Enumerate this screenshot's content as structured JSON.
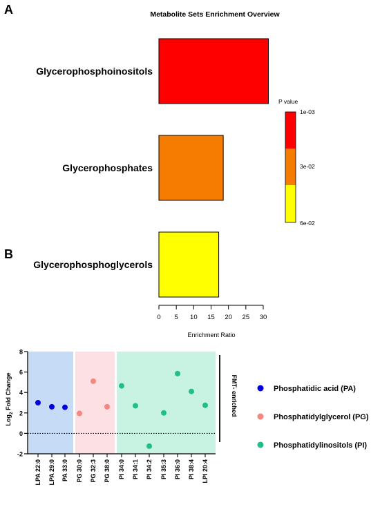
{
  "panel_a_letter": "A",
  "panel_b_letter": "B",
  "chart_data": [
    {
      "type": "bar",
      "orientation": "horizontal",
      "title": "Metabolite Sets Enrichment Overview",
      "xlabel": "Enrichment Ratio",
      "xlim": [
        0,
        32
      ],
      "xticks": [
        "0",
        "5",
        "10",
        "15",
        "20",
        "25",
        "30"
      ],
      "categories": [
        "Glycerophosphoinositols",
        "Glycerophosphates",
        "Glycerophosphoglycerols"
      ],
      "values": [
        31.5,
        18.5,
        17.2
      ],
      "bar_colors": [
        "#ff0000",
        "#f57c00",
        "#ffff00"
      ],
      "colorbar": {
        "title": "P value",
        "labels": [
          "1e-03",
          "3e-02",
          "6e-02"
        ],
        "colors": [
          "#ff0000",
          "#f57c00",
          "#ffff00"
        ]
      }
    },
    {
      "type": "scatter",
      "ylabel_main": "Log",
      "ylabel_sub": "2",
      "ylabel_rest": " Fold Change",
      "ylim": [
        -2,
        8
      ],
      "yticks": [
        "-2",
        "0",
        "2",
        "4",
        "6",
        "8"
      ],
      "x_labels": [
        "LPA 22:0",
        "LPA 29:0",
        "PA 33:0",
        "PG 30:0",
        "PG 32:3",
        "PG 38:0",
        "PI 34:0",
        "PI 34:1",
        "PI 34:2",
        "PI 35:3",
        "PI 36:0",
        "PI 38:4",
        "LPI 20:4"
      ],
      "values": [
        3.0,
        2.6,
        2.55,
        1.95,
        5.1,
        2.6,
        4.65,
        2.7,
        -1.25,
        2.0,
        5.85,
        4.1,
        2.75
      ],
      "groups": [
        "PA",
        "PA",
        "PA",
        "PG",
        "PG",
        "PG",
        "PI",
        "PI",
        "PI",
        "PI",
        "PI",
        "PI",
        "PI"
      ],
      "series": [
        {
          "key": "PA",
          "name": "Phosphatidic acid (PA)",
          "color": "#0000e0",
          "bg": "#c6dbf5"
        },
        {
          "key": "PG",
          "name": "Phosphatidylglycerol (PG)",
          "color": "#f4877f",
          "bg": "#fde0e3"
        },
        {
          "key": "PI",
          "name": "Phosphatidylinositols (PI)",
          "color": "#1fbf86",
          "bg": "#c8f3e3"
        }
      ],
      "bracket_label": "FMT- enriched"
    }
  ]
}
